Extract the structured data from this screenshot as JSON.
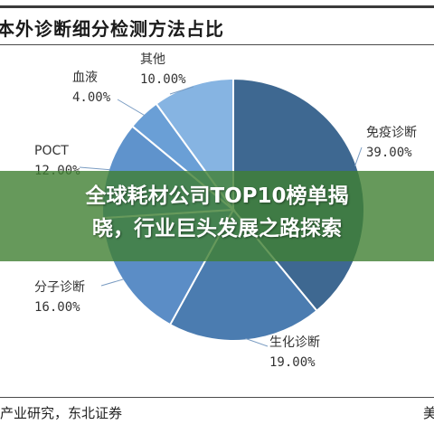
{
  "header": {
    "title": "本外诊断细分检测方法占比"
  },
  "chart_data": {
    "type": "pie",
    "title": "本外诊断细分检测方法占比",
    "slices": [
      {
        "label": "免疫诊断",
        "value": 39.0,
        "display": "39.00%",
        "color": "#3e6891"
      },
      {
        "label": "生化诊断",
        "value": 19.0,
        "display": "19.00%",
        "color": "#4b7cb0"
      },
      {
        "label": "分子诊断",
        "value": 16.0,
        "display": "16.00%",
        "color": "#5b8dc6"
      },
      {
        "label": "POCT",
        "value": 12.0,
        "display": "12.00%",
        "color": "#5f93cc"
      },
      {
        "label": "血液",
        "value": 4.0,
        "display": "4.00%",
        "color": "#6a9fd6"
      },
      {
        "label": "其他",
        "value": 10.0,
        "display": "10.00%",
        "color": "#86b4e2"
      }
    ],
    "start": "12 o'clock",
    "direction": "clockwise"
  },
  "banner": {
    "line1": "全球耗材公司TOP10榜单揭",
    "line2": "晓，行业巨头发展之路探索"
  },
  "footer": {
    "source": "产业研究，东北证券",
    "corner": "美"
  }
}
